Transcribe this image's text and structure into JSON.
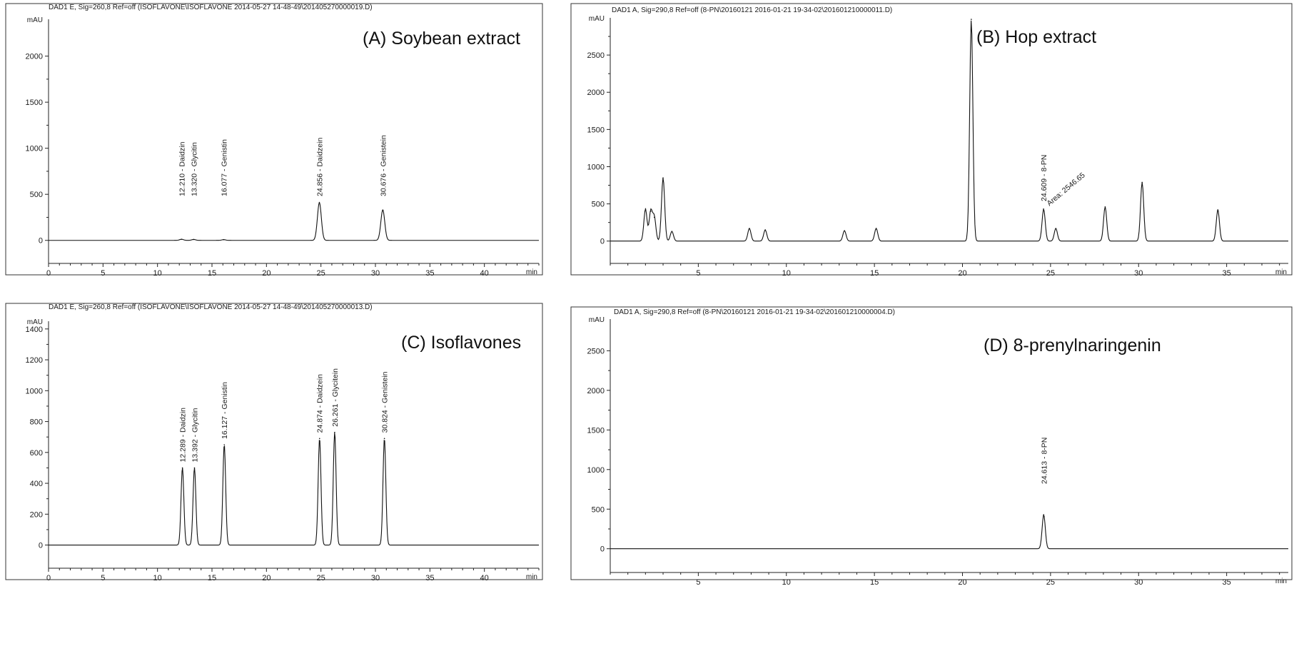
{
  "chart_data": [
    {
      "id": "A",
      "type": "line",
      "header": "DAD1 E, Sig=260,8 Ref=off (ISOFLAVONE\\ISOFLAVONE 2014-05-27 14-48-49\\201405270000019.D)",
      "title": "(A) Soybean  extract",
      "ylabel": "mAU",
      "xlabel": "min",
      "xlim": [
        0,
        45
      ],
      "ylim": [
        -250,
        2400
      ],
      "xticks": [
        0,
        5,
        10,
        15,
        20,
        25,
        30,
        35,
        40
      ],
      "yticks": [
        0,
        500,
        1000,
        1500,
        2000
      ],
      "peaks": [
        {
          "x": 12.21,
          "y": 12,
          "label": "12.210 -  Daidzin"
        },
        {
          "x": 13.32,
          "y": 10,
          "label": "13.320 -  Glycitin"
        },
        {
          "x": 16.077,
          "y": 8,
          "label": "16.077 -  Genistin"
        },
        {
          "x": 24.856,
          "y": 410,
          "label": "24.856 -  Daidzein"
        },
        {
          "x": 30.676,
          "y": 330,
          "label": "30.676 -  Genistein"
        }
      ]
    },
    {
      "id": "B",
      "type": "line",
      "header": "DAD1 A, Sig=290,8 Ref=off (8-PN\\20160121 2016-01-21 19-34-02\\201601210000011.D)",
      "title": "(B) Hop extract",
      "ylabel": "mAU",
      "xlabel": "min",
      "xlim": [
        0,
        38.5
      ],
      "ylim": [
        -300,
        3000
      ],
      "xticks": [
        5,
        10,
        15,
        20,
        25,
        30,
        35
      ],
      "yticks": [
        0,
        500,
        1000,
        1500,
        2000,
        2500
      ],
      "peaks": [
        {
          "x": 2.0,
          "y": 430,
          "label": ""
        },
        {
          "x": 2.3,
          "y": 400,
          "label": ""
        },
        {
          "x": 2.5,
          "y": 320,
          "label": ""
        },
        {
          "x": 3.0,
          "y": 850,
          "label": ""
        },
        {
          "x": 3.5,
          "y": 130,
          "label": ""
        },
        {
          "x": 7.9,
          "y": 170,
          "label": ""
        },
        {
          "x": 8.8,
          "y": 150,
          "label": ""
        },
        {
          "x": 13.3,
          "y": 140,
          "label": ""
        },
        {
          "x": 15.1,
          "y": 170,
          "label": ""
        },
        {
          "x": 20.5,
          "y": 2980,
          "label": ""
        },
        {
          "x": 24.609,
          "y": 430,
          "label": "24.609 -  8-PN"
        },
        {
          "x": 25.3,
          "y": 170,
          "label": ""
        },
        {
          "x": 28.1,
          "y": 460,
          "label": ""
        },
        {
          "x": 30.2,
          "y": 790,
          "label": ""
        },
        {
          "x": 34.5,
          "y": 420,
          "label": ""
        }
      ],
      "annotation": "Area: 2546.65"
    },
    {
      "id": "C",
      "type": "line",
      "header": "DAD1 E, Sig=260,8 Ref=off (ISOFLAVONE\\ISOFLAVONE 2014-05-27 14-48-49\\201405270000013.D)",
      "title": "(C) Isoflavones",
      "ylabel": "mAU",
      "xlabel": "min",
      "xlim": [
        0,
        45
      ],
      "ylim": [
        -150,
        1450
      ],
      "xticks": [
        0,
        5,
        10,
        15,
        20,
        25,
        30,
        35,
        40
      ],
      "yticks": [
        0,
        200,
        400,
        600,
        800,
        1000,
        1200,
        1400
      ],
      "peaks": [
        {
          "x": 12.289,
          "y": 500,
          "label": "12.289 -  Daidzin"
        },
        {
          "x": 13.392,
          "y": 500,
          "label": "13.392 -  Glycitin"
        },
        {
          "x": 16.127,
          "y": 650,
          "label": "16.127 -  Genistin"
        },
        {
          "x": 24.874,
          "y": 690,
          "label": "24.874 -  Daidzein"
        },
        {
          "x": 26.261,
          "y": 730,
          "label": "26.261 -  Glycitein"
        },
        {
          "x": 30.824,
          "y": 690,
          "label": "30.824 -  Genistein"
        }
      ]
    },
    {
      "id": "D",
      "type": "line",
      "header": "DAD1 A, Sig=290,8 Ref=off (8-PN\\20160121 2016-01-21 19-34-02\\201601210000004.D)",
      "title": "(D) 8-prenylnaringenin",
      "ylabel": "mAU",
      "xlabel": "min",
      "xlim": [
        0,
        38.5
      ],
      "ylim": [
        -300,
        2900
      ],
      "xticks": [
        5,
        10,
        15,
        20,
        25,
        30,
        35
      ],
      "yticks": [
        0,
        500,
        1000,
        1500,
        2000,
        2500
      ],
      "peaks": [
        {
          "x": 24.613,
          "y": 430,
          "label": "24.613 -  8-PN"
        }
      ]
    }
  ]
}
